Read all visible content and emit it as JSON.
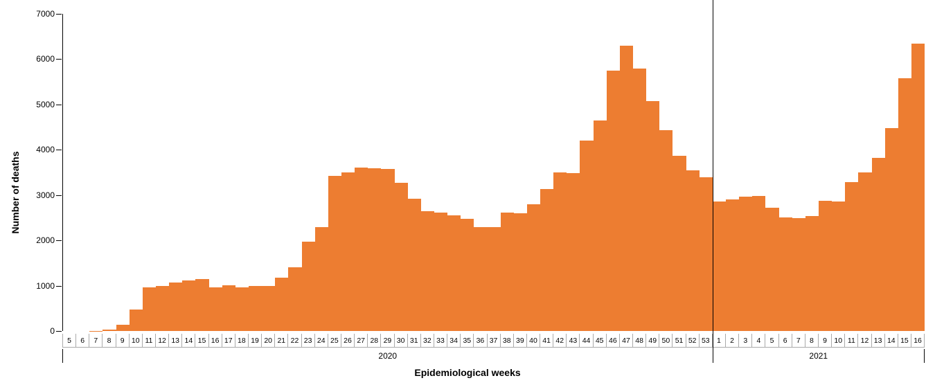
{
  "chart": {
    "type": "bar",
    "ylabel": "Number of  deaths",
    "xlabel": "Epidemiological weeks",
    "ylabel_fontsize": 14,
    "xlabel_fontsize": 14,
    "label_fontweight": "bold",
    "ylim": [
      0,
      7000
    ],
    "ytick_step": 1000,
    "yticks": [
      0,
      1000,
      2000,
      3000,
      4000,
      5000,
      6000,
      7000
    ],
    "bar_color": "#ed7d31",
    "background_color": "#ffffff",
    "axis_color": "#000000",
    "tick_label_fontsize": 12,
    "x_tick_fontsize": 10.5,
    "year_groups": [
      {
        "label": "2020",
        "count": 49
      },
      {
        "label": "2021",
        "count": 16
      }
    ],
    "categories": [
      "5",
      "6",
      "7",
      "8",
      "9",
      "10",
      "11",
      "12",
      "13",
      "14",
      "15",
      "16",
      "17",
      "18",
      "19",
      "20",
      "21",
      "22",
      "23",
      "24",
      "25",
      "26",
      "27",
      "28",
      "29",
      "30",
      "31",
      "32",
      "33",
      "34",
      "35",
      "36",
      "37",
      "38",
      "39",
      "40",
      "41",
      "42",
      "43",
      "44",
      "45",
      "46",
      "47",
      "48",
      "49",
      "50",
      "51",
      "52",
      "53",
      "1",
      "2",
      "3",
      "4",
      "5",
      "6",
      "7",
      "8",
      "9",
      "10",
      "11",
      "12",
      "13",
      "14",
      "15",
      "16"
    ],
    "values": [
      0,
      0,
      5,
      30,
      140,
      480,
      970,
      1000,
      1070,
      1110,
      1150,
      970,
      1010,
      960,
      1000,
      1000,
      1180,
      1400,
      1970,
      2300,
      3430,
      3500,
      3600,
      3590,
      3580,
      3270,
      2920,
      2650,
      2620,
      2560,
      2470,
      2290,
      2300,
      2620,
      2600,
      2800,
      3130,
      3500,
      3480,
      4200,
      4650,
      5740,
      6300,
      5800,
      5080,
      4430,
      3870,
      3540,
      3400,
      2860,
      2900,
      2960,
      2980,
      2720,
      2500,
      2490,
      2540,
      2870,
      2860,
      3280,
      3500,
      3820,
      4480,
      5580,
      6350
    ]
  }
}
